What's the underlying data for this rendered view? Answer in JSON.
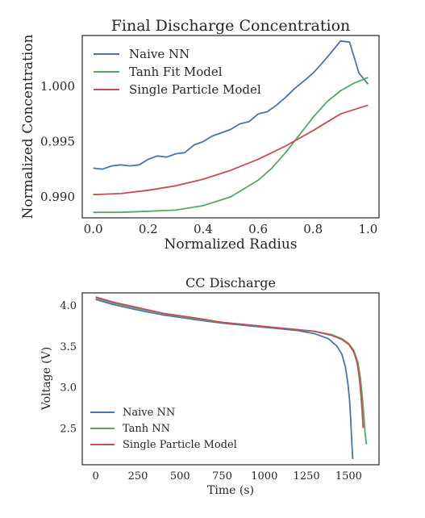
{
  "chart_data": [
    {
      "type": "line",
      "title": "Final Discharge Concentration",
      "xlabel": "Normalized Radius",
      "ylabel": "Normalized Concentration",
      "xlim": [
        -0.04,
        1.04
      ],
      "ylim": [
        0.9881,
        1.0046
      ],
      "xticks": [
        "0.0",
        "0.2",
        "0.4",
        "0.6",
        "0.8",
        "1.0"
      ],
      "yticks": [
        "0.990",
        "0.995",
        "1.000"
      ],
      "grid": false,
      "legend_position": "top-left",
      "series": [
        {
          "name": "Naive NN",
          "color": "#4C72B0",
          "x": [
            0.0,
            0.033,
            0.067,
            0.1,
            0.133,
            0.167,
            0.2,
            0.233,
            0.267,
            0.3,
            0.333,
            0.367,
            0.4,
            0.433,
            0.467,
            0.5,
            0.533,
            0.567,
            0.6,
            0.633,
            0.667,
            0.7,
            0.733,
            0.767,
            0.8,
            0.833,
            0.867,
            0.9,
            0.933,
            0.967,
            1.0
          ],
          "y": [
            0.9926,
            0.9925,
            0.9928,
            0.9929,
            0.9928,
            0.9929,
            0.9934,
            0.9937,
            0.9936,
            0.9939,
            0.994,
            0.9947,
            0.995,
            0.9955,
            0.9958,
            0.9961,
            0.9966,
            0.9968,
            0.9975,
            0.9977,
            0.9983,
            0.999,
            0.9998,
            1.0005,
            1.0012,
            1.0021,
            1.0031,
            1.0041,
            1.004,
            1.0012,
            1.0002
          ]
        },
        {
          "name": "Tanh Fit Model",
          "color": "#55A868",
          "x": [
            0.0,
            0.1,
            0.2,
            0.3,
            0.4,
            0.5,
            0.6,
            0.65,
            0.7,
            0.75,
            0.8,
            0.85,
            0.9,
            0.95,
            1.0
          ],
          "y": [
            0.9886,
            0.9886,
            0.9887,
            0.9888,
            0.9892,
            0.99,
            0.9915,
            0.9926,
            0.994,
            0.9956,
            0.9972,
            0.9986,
            0.9996,
            1.0003,
            1.0008
          ]
        },
        {
          "name": "Single Particle Model",
          "color": "#C44E52",
          "x": [
            0.0,
            0.1,
            0.2,
            0.3,
            0.4,
            0.5,
            0.6,
            0.7,
            0.8,
            0.9,
            1.0
          ],
          "y": [
            0.9902,
            0.9903,
            0.9906,
            0.991,
            0.9916,
            0.9924,
            0.9934,
            0.9946,
            0.996,
            0.9975,
            0.9983
          ]
        }
      ]
    },
    {
      "type": "line",
      "title": "CC Discharge",
      "xlabel": "Time (s)",
      "ylabel": "Voltage (V)",
      "xlim": [
        -80,
        1680
      ],
      "ylim": [
        2.05,
        4.15
      ],
      "xticks": [
        "0",
        "250",
        "500",
        "750",
        "1000",
        "1250",
        "1500"
      ],
      "yticks": [
        "2.5",
        "3.0",
        "3.5",
        "4.0"
      ],
      "grid": false,
      "legend_position": "bottom-left",
      "series": [
        {
          "name": "Naive NN",
          "color": "#4C72B0",
          "x": [
            0,
            100,
            250,
            400,
            500,
            600,
            750,
            900,
            1000,
            1100,
            1200,
            1300,
            1380,
            1430,
            1460,
            1480,
            1495,
            1505,
            1512,
            1518,
            1524
          ],
          "y": [
            4.07,
            4.01,
            3.94,
            3.88,
            3.85,
            3.82,
            3.78,
            3.75,
            3.73,
            3.71,
            3.69,
            3.65,
            3.59,
            3.5,
            3.4,
            3.25,
            3.05,
            2.85,
            2.6,
            2.35,
            2.12
          ]
        },
        {
          "name": "Tanh NN",
          "color": "#55A868",
          "x": [
            0,
            100,
            250,
            400,
            500,
            600,
            750,
            900,
            1000,
            1100,
            1200,
            1300,
            1400,
            1460,
            1500,
            1530,
            1555,
            1570,
            1580,
            1590,
            1597,
            1605
          ],
          "y": [
            4.09,
            4.03,
            3.96,
            3.9,
            3.86,
            3.83,
            3.79,
            3.76,
            3.74,
            3.72,
            3.7,
            3.68,
            3.64,
            3.59,
            3.53,
            3.45,
            3.3,
            3.1,
            2.9,
            2.65,
            2.45,
            2.3
          ]
        },
        {
          "name": "Single Particle Model",
          "color": "#C44E52",
          "x": [
            0,
            100,
            250,
            400,
            500,
            600,
            750,
            900,
            1000,
            1100,
            1200,
            1300,
            1400,
            1460,
            1500,
            1530,
            1550,
            1563,
            1573,
            1580,
            1586
          ],
          "y": [
            4.1,
            4.04,
            3.97,
            3.9,
            3.87,
            3.84,
            3.79,
            3.76,
            3.74,
            3.72,
            3.7,
            3.68,
            3.63,
            3.58,
            3.52,
            3.43,
            3.3,
            3.12,
            2.9,
            2.7,
            2.5
          ]
        }
      ]
    }
  ]
}
